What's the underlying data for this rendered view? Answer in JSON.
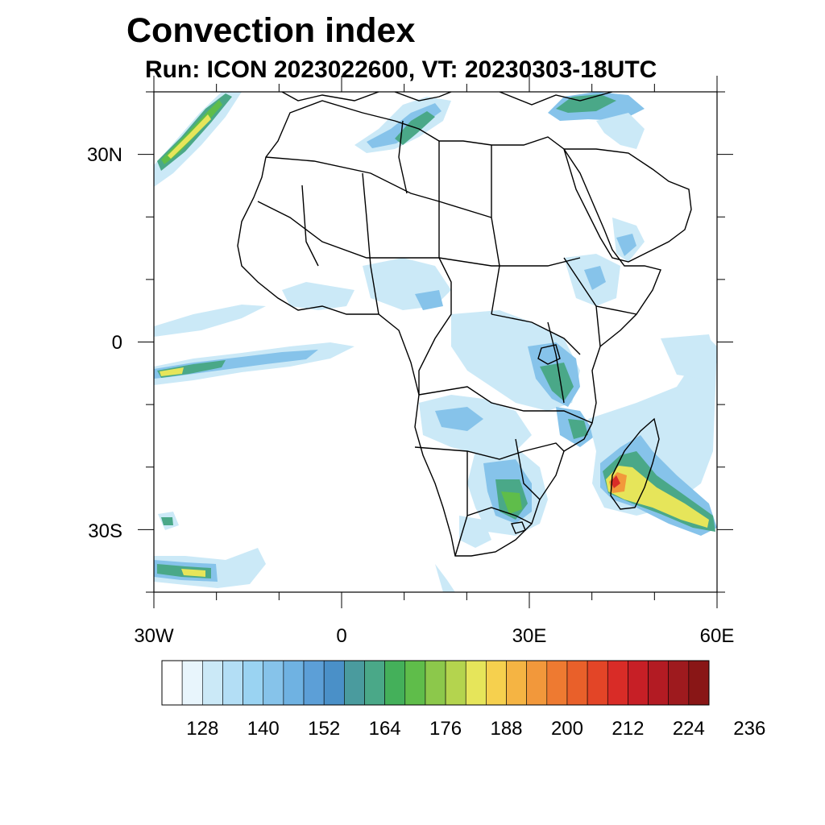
{
  "title": "Convection index",
  "subtitle": "Run: ICON 2023022600,  VT: 20230303-18UTC",
  "axes": {
    "lon_ticks": [
      "30W",
      "0",
      "30E",
      "60E"
    ],
    "lat_ticks": [
      "30N",
      "0",
      "30S"
    ],
    "lon_range": [
      -30,
      60
    ],
    "lat_range": [
      -40,
      40
    ]
  },
  "colorbar": {
    "labels": [
      "128",
      "140",
      "152",
      "164",
      "176",
      "188",
      "200",
      "212",
      "224",
      "236"
    ],
    "colors": [
      "#ffffff",
      "#e8f5fc",
      "#cbe9f7",
      "#b3def5",
      "#9ad3f2",
      "#86c3ea",
      "#6fb2e2",
      "#5c9fd7",
      "#4a90c8",
      "#4a9b9e",
      "#4aa888",
      "#44b05a",
      "#5fbd4a",
      "#8cc84b",
      "#b4d44e",
      "#e6e55a",
      "#f6d04e",
      "#f5b443",
      "#f2983b",
      "#ee7a31",
      "#e9602a",
      "#e34527",
      "#d92c27",
      "#c71f26",
      "#b31b23",
      "#9e1a1e",
      "#891616"
    ]
  },
  "field_colors": {
    "light": "#cbe9f7",
    "blue": "#86c3ea",
    "teal": "#4aa888",
    "green": "#5fbd4a",
    "yellow": "#e6e55a",
    "orange": "#f2983b",
    "red": "#d92c27"
  }
}
